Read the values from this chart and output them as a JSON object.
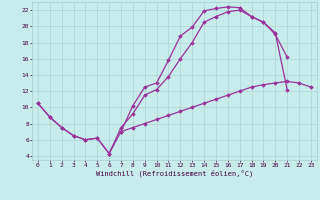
{
  "bg_color": "#c8ecec",
  "line_color": "#993399",
  "xlabel": "Windchill (Refroidissement éolien,°C)",
  "xlim": [
    -0.5,
    23.5
  ],
  "ylim": [
    3.5,
    23.0
  ],
  "xticks": [
    0,
    1,
    2,
    3,
    4,
    5,
    6,
    7,
    8,
    9,
    10,
    11,
    12,
    13,
    14,
    15,
    16,
    17,
    18,
    19,
    20,
    21,
    22,
    23
  ],
  "yticks": [
    4,
    6,
    8,
    10,
    12,
    14,
    16,
    18,
    20,
    22
  ],
  "curve1_x": [
    0,
    1,
    2,
    3,
    4,
    5,
    6,
    7,
    8,
    9,
    10,
    11,
    12,
    13,
    14,
    15,
    16,
    17,
    18,
    19,
    20,
    21
  ],
  "curve1_y": [
    10.5,
    8.8,
    7.5,
    6.5,
    6.0,
    6.2,
    4.3,
    7.0,
    10.2,
    12.5,
    13.0,
    15.8,
    18.8,
    19.9,
    21.9,
    22.2,
    22.4,
    22.3,
    21.2,
    20.5,
    19.2,
    12.2
  ],
  "curve2_x": [
    0,
    1,
    2,
    3,
    4,
    5,
    6,
    7,
    8,
    9,
    10,
    11,
    12,
    13,
    14,
    15,
    16,
    17,
    18,
    19,
    20,
    21
  ],
  "curve2_y": [
    10.5,
    8.8,
    7.5,
    6.5,
    6.0,
    6.2,
    4.3,
    7.5,
    9.2,
    11.5,
    12.2,
    13.8,
    16.0,
    18.0,
    20.5,
    21.2,
    21.8,
    22.0,
    21.2,
    20.5,
    19.0,
    16.2
  ],
  "curve3_x": [
    7,
    8,
    9,
    10,
    11,
    12,
    13,
    14,
    15,
    16,
    17,
    18,
    19,
    20,
    21,
    22,
    23
  ],
  "curve3_y": [
    7.0,
    7.5,
    8.0,
    8.5,
    9.0,
    9.5,
    10.0,
    10.5,
    11.0,
    11.5,
    12.0,
    12.5,
    12.8,
    13.0,
    13.2,
    13.0,
    12.5
  ]
}
